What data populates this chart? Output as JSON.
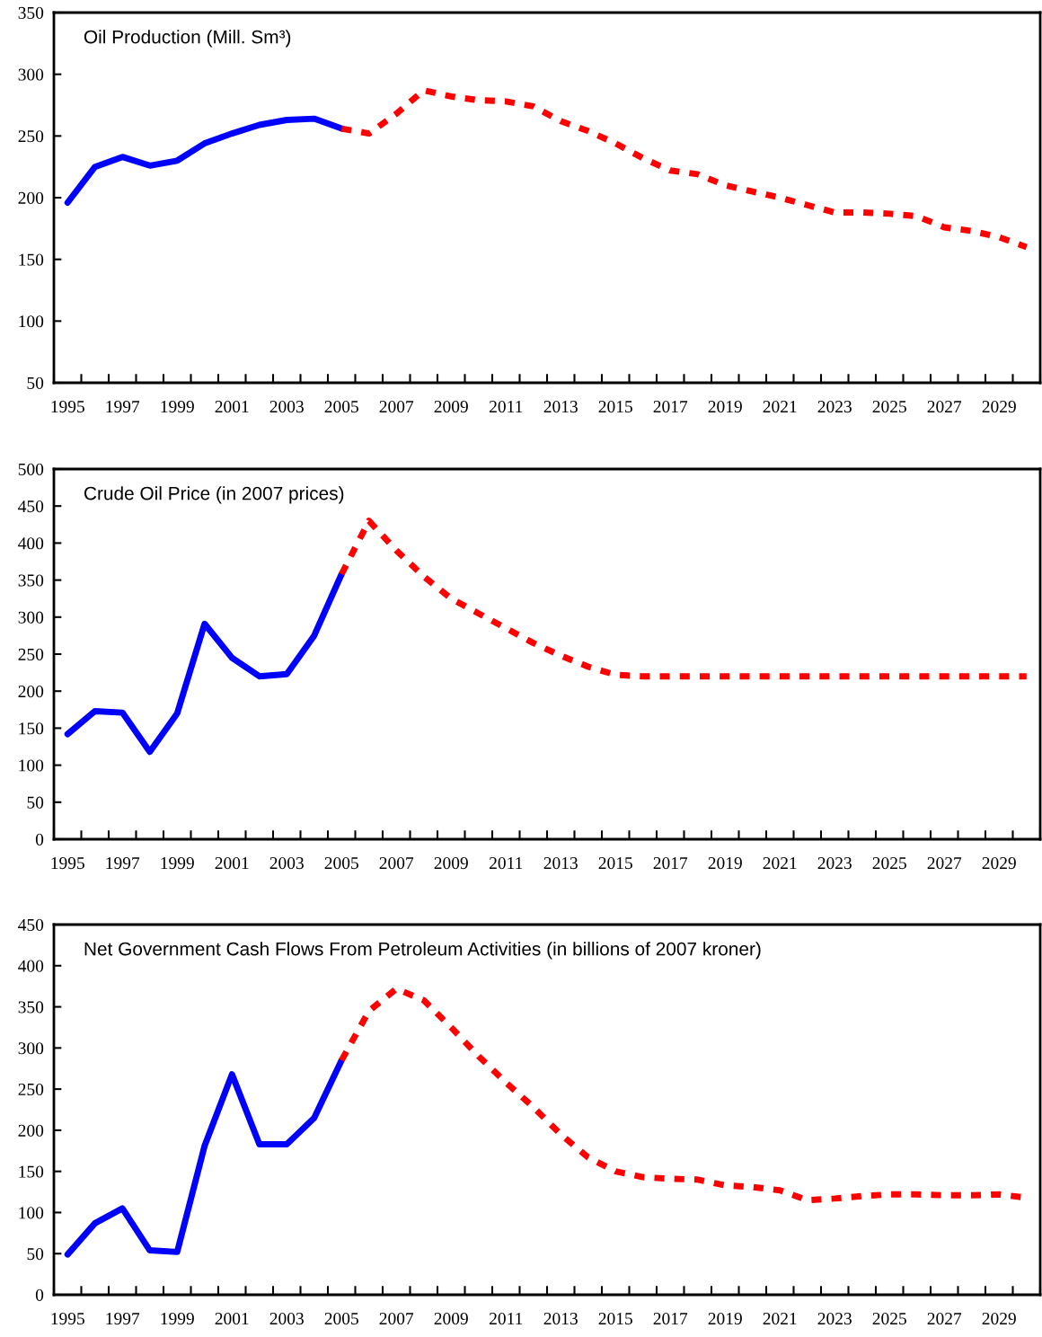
{
  "chart_data": [
    {
      "type": "line",
      "title": "Oil Production (Mill. Sm³)",
      "categories": [
        "1995",
        null,
        "1997",
        null,
        "1999",
        null,
        "2001",
        null,
        "2003",
        null,
        "2005",
        null,
        "2007",
        null,
        "2009",
        null,
        "2011",
        null,
        "2013",
        null,
        "2015",
        null,
        "2017",
        null,
        "2019",
        null,
        "2021",
        null,
        "2023",
        null,
        "2025",
        null,
        "2027",
        null,
        "2029",
        null
      ],
      "series": [
        {
          "color": "#0000ff",
          "line_style": "solid",
          "values": [
            196,
            225,
            233,
            226,
            230,
            244,
            252,
            259,
            263,
            264,
            256,
            null,
            null,
            null,
            null,
            null,
            null,
            null,
            null,
            null,
            null,
            null,
            null,
            null,
            null,
            null,
            null,
            null,
            null,
            null,
            null,
            null,
            null,
            null,
            null,
            null
          ]
        },
        {
          "color": "#ff0000",
          "line_style": "dashed",
          "values": [
            null,
            null,
            null,
            null,
            null,
            null,
            null,
            null,
            null,
            null,
            256,
            252,
            268,
            287,
            282,
            279,
            278,
            274,
            262,
            254,
            244,
            232,
            222,
            219,
            210,
            205,
            200,
            194,
            188,
            188,
            187,
            185,
            176,
            173,
            168,
            160
          ]
        }
      ],
      "ylim": [
        50,
        350
      ],
      "yticks": [
        50,
        100,
        150,
        200,
        250,
        300,
        350
      ],
      "grid": false,
      "legend": false,
      "marker": "none"
    },
    {
      "type": "line",
      "title": "Crude Oil Price (in 2007 prices)",
      "categories": [
        "1995",
        null,
        "1997",
        null,
        "1999",
        null,
        "2001",
        null,
        "2003",
        null,
        "2005",
        null,
        "2007",
        null,
        "2009",
        null,
        "2011",
        null,
        "2013",
        null,
        "2015",
        null,
        "2017",
        null,
        "2019",
        null,
        "2021",
        null,
        "2023",
        null,
        "2025",
        null,
        "2027",
        null,
        "2029",
        null
      ],
      "series": [
        {
          "color": "#0000ff",
          "line_style": "solid",
          "values": [
            142,
            173,
            171,
            118,
            170,
            291,
            245,
            220,
            223,
            275,
            358,
            null,
            null,
            null,
            null,
            null,
            null,
            null,
            null,
            null,
            null,
            null,
            null,
            null,
            null,
            null,
            null,
            null,
            null,
            null,
            null,
            null,
            null,
            null,
            null,
            null
          ]
        },
        {
          "color": "#ff0000",
          "line_style": "dashed",
          "values": [
            null,
            null,
            null,
            null,
            null,
            null,
            null,
            null,
            null,
            null,
            358,
            430,
            390,
            355,
            325,
            305,
            285,
            265,
            248,
            233,
            222,
            220,
            220,
            220,
            220,
            220,
            220,
            220,
            220,
            220,
            220,
            220,
            220,
            220,
            220,
            220
          ]
        }
      ],
      "ylim": [
        0,
        500
      ],
      "yticks": [
        0,
        50,
        100,
        150,
        200,
        250,
        300,
        350,
        400,
        450,
        500
      ],
      "grid": false,
      "legend": false,
      "marker": "none"
    },
    {
      "type": "line",
      "title": "Net Government Cash Flows From Petroleum Activities (in billions of 2007 kroner)",
      "categories": [
        "1995",
        null,
        "1997",
        null,
        "1999",
        null,
        "2001",
        null,
        "2003",
        null,
        "2005",
        null,
        "2007",
        null,
        "2009",
        null,
        "2011",
        null,
        "2013",
        null,
        "2015",
        null,
        "2017",
        null,
        "2019",
        null,
        "2021",
        null,
        "2023",
        null,
        "2025",
        null,
        "2027",
        null,
        "2029",
        null
      ],
      "series": [
        {
          "color": "#0000ff",
          "line_style": "solid",
          "values": [
            49,
            87,
            105,
            54,
            52,
            181,
            268,
            183,
            183,
            215,
            285,
            null,
            null,
            null,
            null,
            null,
            null,
            null,
            null,
            null,
            null,
            null,
            null,
            null,
            null,
            null,
            null,
            null,
            null,
            null,
            null,
            null,
            null,
            null,
            null,
            null
          ]
        },
        {
          "color": "#ff0000",
          "line_style": "dashed",
          "values": [
            null,
            null,
            null,
            null,
            null,
            null,
            null,
            null,
            null,
            null,
            285,
            345,
            372,
            358,
            325,
            290,
            258,
            228,
            195,
            167,
            150,
            143,
            141,
            140,
            133,
            131,
            127,
            115,
            117,
            120,
            122,
            122,
            121,
            121,
            122,
            118
          ]
        }
      ],
      "ylim": [
        0,
        450
      ],
      "yticks": [
        0,
        50,
        100,
        150,
        200,
        250,
        300,
        350,
        400,
        450
      ],
      "grid": false,
      "legend": false,
      "marker": "none"
    }
  ]
}
